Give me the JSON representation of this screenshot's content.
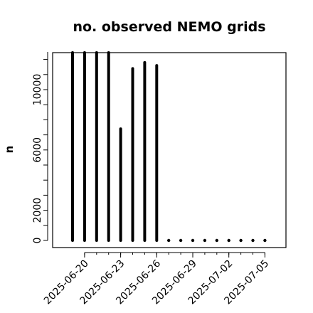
{
  "chart_data": {
    "type": "bar",
    "title": "no. observed NEMO grids",
    "xlabel": "",
    "ylabel": "n",
    "ylim": [
      0,
      12500
    ],
    "yticks": [
      0,
      2000,
      6000,
      10000
    ],
    "xticks": [
      "2025-06-20",
      "2025-06-23",
      "2025-06-26",
      "2025-06-29",
      "2025-07-02",
      "2025-07-05"
    ],
    "x": [
      "2025-06-19",
      "2025-06-20",
      "2025-06-21",
      "2025-06-22",
      "2025-06-23",
      "2025-06-24",
      "2025-06-25",
      "2025-06-26",
      "2025-06-27",
      "2025-06-28",
      "2025-06-29",
      "2025-06-30",
      "2025-07-01",
      "2025-07-02",
      "2025-07-03",
      "2025-07-04",
      "2025-07-05"
    ],
    "values": [
      12500,
      12500,
      12500,
      12500,
      7400,
      11400,
      11800,
      11600,
      0,
      0,
      0,
      0,
      0,
      0,
      0,
      0,
      0
    ],
    "grid": false,
    "legend": "none"
  }
}
